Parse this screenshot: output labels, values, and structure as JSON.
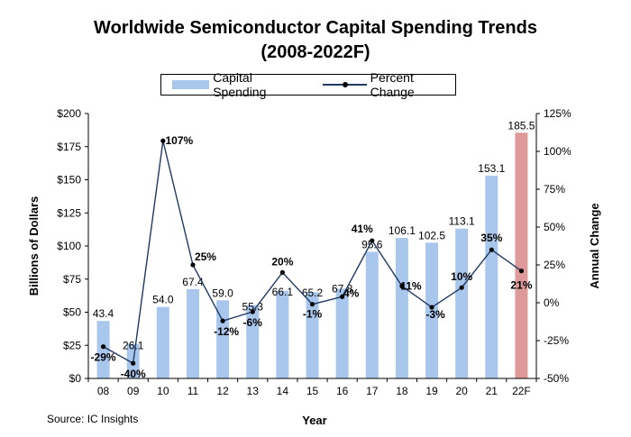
{
  "chart_data": {
    "type": "bar",
    "title": "Worldwide Semiconductor Capital Spending Trends",
    "subtitle": "(2008-2022F)",
    "categories": [
      "08",
      "09",
      "10",
      "11",
      "12",
      "13",
      "14",
      "15",
      "16",
      "17",
      "18",
      "19",
      "20",
      "21",
      "22F"
    ],
    "series": [
      {
        "name": "Capital Spending",
        "type": "bar",
        "axis": "left",
        "values": [
          43.4,
          26.1,
          54.0,
          67.4,
          59.0,
          55.3,
          66.1,
          65.2,
          67.8,
          95.6,
          106.1,
          102.5,
          113.1,
          153.1,
          185.5
        ],
        "labels": [
          "43.4",
          "26.1",
          "54.0",
          "67.4",
          "59.0",
          "55.3",
          "66.1",
          "65.2",
          "67.8",
          "95.6",
          "106.1",
          "102.5",
          "113.1",
          "153.1",
          "185.5"
        ],
        "color": "#a9c6ec",
        "forecast_color": "#de9a99"
      },
      {
        "name": "Percent Change",
        "type": "line",
        "axis": "right",
        "values": [
          -29,
          -40,
          107,
          25,
          -12,
          -6,
          20,
          -1,
          4,
          41,
          11,
          -3,
          10,
          35,
          21
        ],
        "labels": [
          "-29%",
          "-40%",
          "107%",
          "25%",
          "-12%",
          "-6%",
          "20%",
          "-1%",
          "4%",
          "41%",
          "11%",
          "-3%",
          "10%",
          "35%",
          "21%"
        ],
        "color": "#1f3864"
      }
    ],
    "xlabel": "Year",
    "ylabel": "Billions of Dollars",
    "y2label": "Annual Change",
    "ylim": [
      0,
      200
    ],
    "y2lim": [
      -50,
      125
    ],
    "yticks": [
      "$0",
      "$25",
      "$50",
      "$75",
      "$100",
      "$125",
      "$150",
      "$175",
      "$200"
    ],
    "y2ticks": [
      "-50%",
      "-25%",
      "0%",
      "25%",
      "50%",
      "75%",
      "100%",
      "125%"
    ],
    "grid": false,
    "legend": "top"
  },
  "source": "Source: IC Insights"
}
